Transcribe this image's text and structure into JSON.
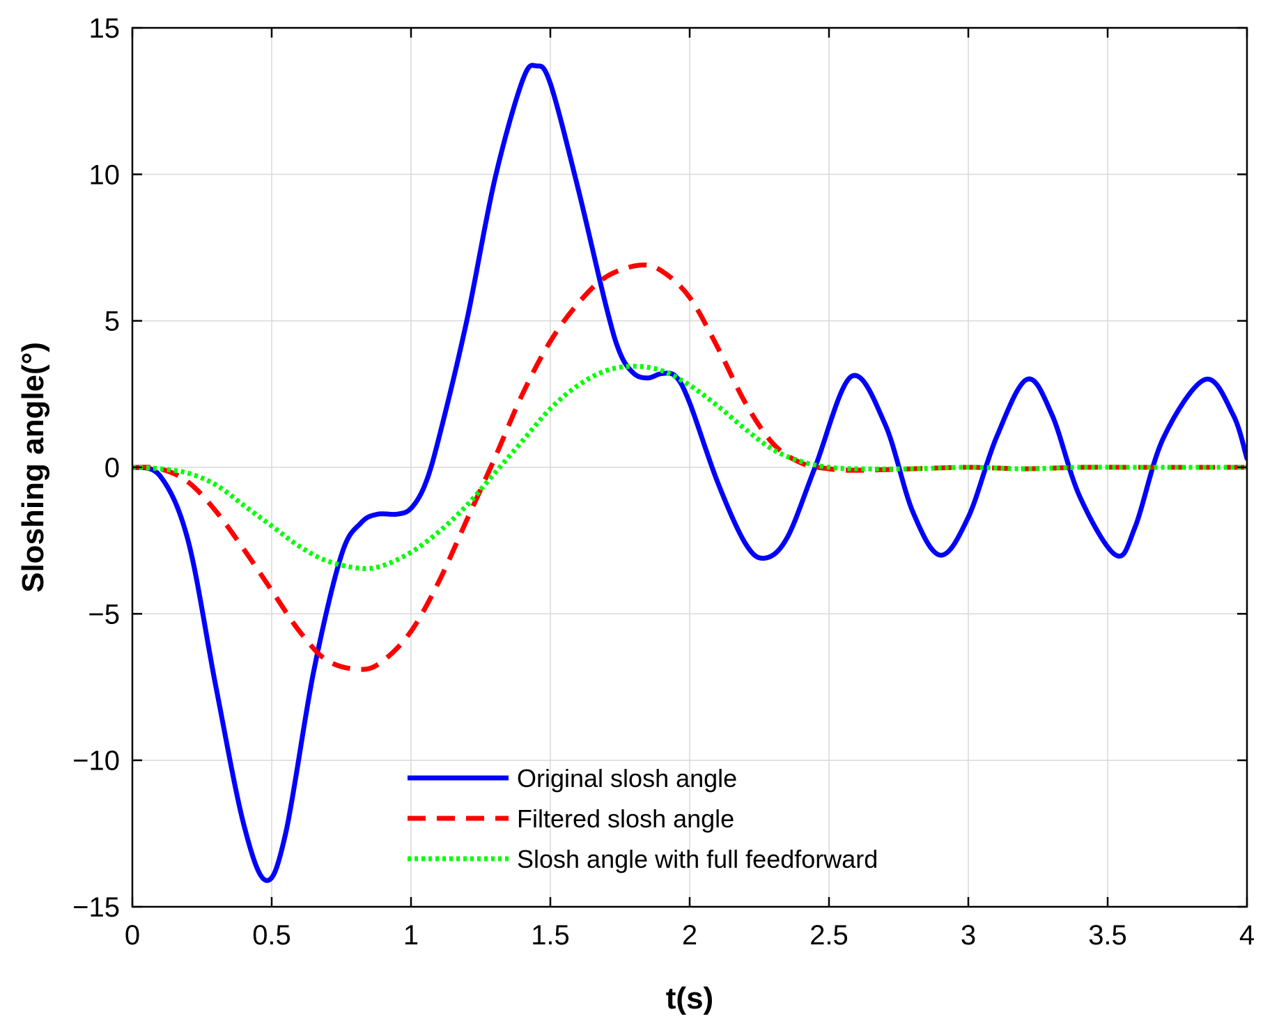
{
  "chart_data": {
    "type": "line",
    "title": "",
    "xlabel": "t(s)",
    "ylabel": "Sloshing  angle(°)",
    "xlim": [
      0,
      4
    ],
    "ylim": [
      -15,
      15
    ],
    "xticks": [
      0,
      0.5,
      1,
      1.5,
      2,
      2.5,
      3,
      3.5,
      4
    ],
    "xtick_labels": [
      "0",
      "0.5",
      "1",
      "1.5",
      "2",
      "2.5",
      "3",
      "3.5",
      "4"
    ],
    "yticks": [
      -15,
      -10,
      -5,
      0,
      5,
      10,
      15
    ],
    "ytick_labels": [
      "−15",
      "−10",
      "−5",
      "0",
      "5",
      "10",
      "15"
    ],
    "grid": true,
    "legend_position": "bottom-center",
    "series": [
      {
        "name": "Original slosh angle",
        "color": "#0000ff",
        "style": "solid",
        "x": [
          0,
          0.1,
          0.2,
          0.3,
          0.4,
          0.48,
          0.55,
          0.65,
          0.75,
          0.82,
          0.88,
          0.95,
          1.0,
          1.05,
          1.1,
          1.2,
          1.3,
          1.4,
          1.45,
          1.5,
          1.6,
          1.7,
          1.75,
          1.8,
          1.85,
          1.9,
          1.95,
          2.0,
          2.1,
          2.2,
          2.27,
          2.35,
          2.45,
          2.58,
          2.7,
          2.8,
          2.9,
          3.0,
          3.1,
          3.21,
          3.3,
          3.4,
          3.53,
          3.6,
          3.7,
          3.85,
          3.95,
          4.0
        ],
        "y": [
          0,
          -0.3,
          -2.5,
          -7.5,
          -12.2,
          -14.1,
          -12.5,
          -7.0,
          -3.0,
          -1.9,
          -1.6,
          -1.6,
          -1.4,
          -0.6,
          1.0,
          5.0,
          9.8,
          13.2,
          13.7,
          13.1,
          9.5,
          5.5,
          3.9,
          3.2,
          3.05,
          3.2,
          3.1,
          2.2,
          -0.5,
          -2.6,
          -3.1,
          -2.4,
          0.0,
          3.1,
          1.5,
          -1.5,
          -3.0,
          -1.7,
          1.0,
          3.0,
          1.8,
          -1.0,
          -3.0,
          -2.0,
          1.0,
          3.0,
          1.8,
          0.3
        ]
      },
      {
        "name": "Filtered slosh angle",
        "color": "#ff0000",
        "style": "dashed",
        "x": [
          0,
          0.1,
          0.2,
          0.3,
          0.4,
          0.5,
          0.6,
          0.7,
          0.82,
          0.9,
          1.0,
          1.1,
          1.2,
          1.3,
          1.4,
          1.5,
          1.6,
          1.7,
          1.82,
          1.9,
          2.0,
          2.1,
          2.2,
          2.3,
          2.4,
          2.5,
          2.6,
          2.8,
          3.0,
          3.2,
          3.4,
          3.6,
          3.8,
          4.0
        ],
        "y": [
          0,
          -0.05,
          -0.5,
          -1.5,
          -2.8,
          -4.2,
          -5.6,
          -6.6,
          -6.9,
          -6.6,
          -5.6,
          -3.9,
          -1.8,
          0.3,
          2.5,
          4.3,
          5.6,
          6.5,
          6.9,
          6.7,
          5.8,
          4.1,
          2.2,
          0.8,
          0.15,
          -0.05,
          -0.1,
          -0.05,
          0.0,
          -0.05,
          0.0,
          0.0,
          0.0,
          0.0
        ]
      },
      {
        "name": "Slosh  angle with full feedforward",
        "color": "#00ff00",
        "style": "dotted",
        "x": [
          0,
          0.1,
          0.2,
          0.3,
          0.4,
          0.5,
          0.6,
          0.7,
          0.82,
          0.9,
          1.0,
          1.1,
          1.2,
          1.3,
          1.4,
          1.5,
          1.6,
          1.7,
          1.8,
          1.9,
          2.0,
          2.1,
          2.2,
          2.3,
          2.4,
          2.5,
          2.6,
          2.8,
          3.0,
          3.2,
          3.4,
          3.6,
          3.8,
          4.0
        ],
        "y": [
          0,
          -0.05,
          -0.2,
          -0.6,
          -1.3,
          -2.0,
          -2.7,
          -3.2,
          -3.45,
          -3.35,
          -2.9,
          -2.2,
          -1.3,
          -0.2,
          0.9,
          2.0,
          2.8,
          3.3,
          3.45,
          3.3,
          2.8,
          2.1,
          1.3,
          0.6,
          0.2,
          0.0,
          -0.05,
          -0.05,
          0.0,
          -0.05,
          0.0,
          0.0,
          0.0,
          0.0
        ]
      }
    ]
  }
}
